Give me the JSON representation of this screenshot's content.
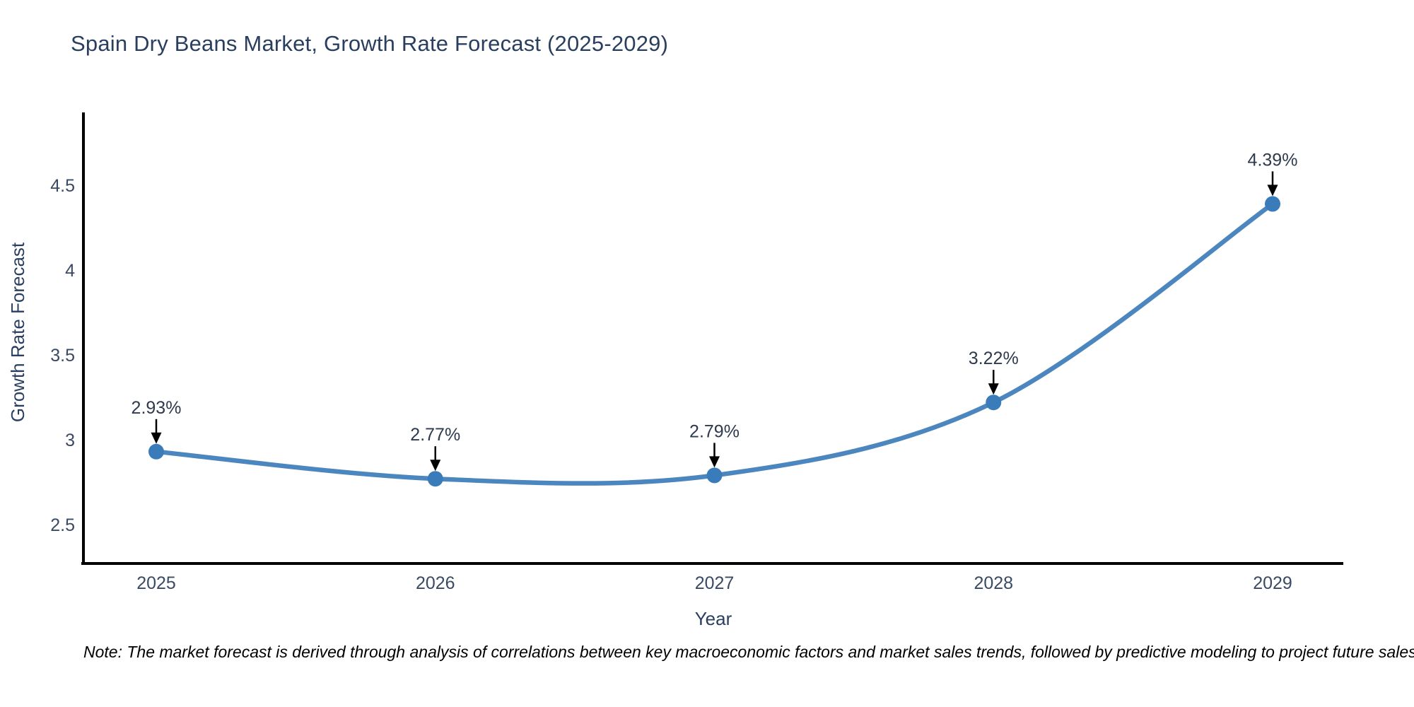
{
  "header": {
    "title": "Spain Dry Beans Market, Growth Rate Forecast (2025-2029)"
  },
  "chart_data": {
    "type": "line",
    "title": "Spain Dry Beans Market, Growth Rate Forecast (2025-2029)",
    "categories": [
      "2025",
      "2026",
      "2027",
      "2028",
      "2029"
    ],
    "x": [
      2025,
      2026,
      2027,
      2028,
      2029
    ],
    "series": [
      {
        "name": "Growth Rate Forecast",
        "values": [
          2.93,
          2.77,
          2.79,
          3.22,
          4.39
        ]
      }
    ],
    "point_labels": [
      "2.93%",
      "2.77%",
      "2.79%",
      "3.22%",
      "4.39%"
    ],
    "xlabel": "Year",
    "ylabel": "Growth Rate Forecast",
    "ytick_labels": [
      "2.5",
      "3",
      "3.5",
      "4",
      "4.5"
    ],
    "ytick_values": [
      2.5,
      3,
      3.5,
      4,
      4.5
    ],
    "ylim": [
      2.27,
      4.93
    ],
    "grid": false,
    "legend": false,
    "line_shape": "spline",
    "annotation_style": "value label above point with down arrow"
  },
  "colors": {
    "background": "#ffffff",
    "line": "#4c86bf",
    "marker": "#3a7cba",
    "axis": "#000000",
    "title_text": "#2a3f5f",
    "tick_text": "#3b4a63",
    "annotation_text": "#2e3a4e",
    "note_text": "#000000"
  },
  "footer": {
    "note": "Note: The market forecast is derived through analysis of correlations between key macroeconomic factors and market sales trends, followed by predictive modeling to project future sales"
  }
}
